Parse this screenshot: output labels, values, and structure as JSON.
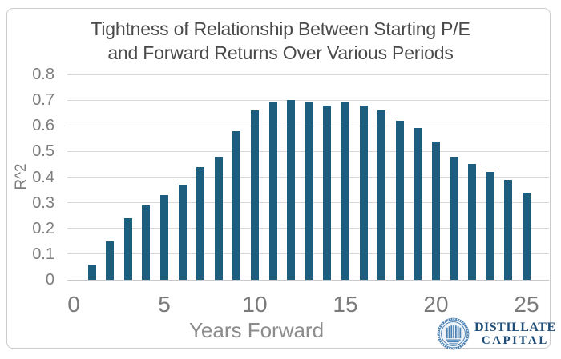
{
  "card": {
    "border_color": "#cbcbcb",
    "background": "#ffffff"
  },
  "chart_data": {
    "type": "bar",
    "title": "Tightness of Relationship Between Starting P/E and Forward Returns Over Various Periods",
    "title_line1": "Tightness of Relationship Between Starting P/E",
    "title_line2": "and Forward Returns Over Various Periods",
    "xlabel": "Years Forward",
    "ylabel": "R^2",
    "x": [
      1,
      2,
      3,
      4,
      5,
      6,
      7,
      8,
      9,
      10,
      11,
      12,
      13,
      14,
      15,
      16,
      17,
      18,
      19,
      20,
      21,
      22,
      23,
      24,
      25
    ],
    "values": [
      0.06,
      0.15,
      0.24,
      0.29,
      0.33,
      0.37,
      0.44,
      0.48,
      0.58,
      0.66,
      0.69,
      0.7,
      0.69,
      0.68,
      0.69,
      0.68,
      0.66,
      0.62,
      0.59,
      0.54,
      0.48,
      0.45,
      0.42,
      0.39,
      0.34
    ],
    "xticks": [
      0,
      5,
      10,
      15,
      20,
      25
    ],
    "yticks": [
      0,
      0.1,
      0.2,
      0.3,
      0.4,
      0.5,
      0.6,
      0.7,
      0.8
    ],
    "ylim": [
      0,
      0.8
    ],
    "grid": "horizontal",
    "gridline_color": "#d9d9d9",
    "bar_color": "#1d5e7e",
    "legend": "none",
    "tick_color": "#7a7a7a"
  },
  "branding": {
    "line1": "DISTILLATE",
    "line2": "CAPITAL",
    "icon": "distillate-capital-seal",
    "text_color": "#1f4e79",
    "seal_color": "#4a80b2"
  }
}
